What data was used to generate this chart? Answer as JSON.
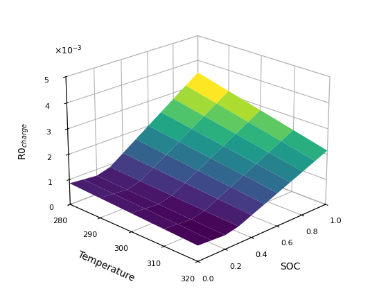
{
  "soc_values": [
    0.0,
    0.1,
    0.2,
    0.3,
    0.4,
    0.5,
    0.6,
    0.7,
    0.8,
    0.9,
    1.0
  ],
  "temp_values": [
    280,
    290,
    300,
    310,
    320
  ],
  "xlabel": "SOC",
  "ylabel": "Temperature",
  "zlabel": "R0$_{charge}$",
  "zlim": [
    0,
    0.005
  ],
  "soc_lim": [
    0,
    1
  ],
  "temp_lim": [
    280,
    320
  ],
  "elev": 22,
  "azim": -135,
  "xticks": [
    0,
    0.2,
    0.4,
    0.6,
    0.8,
    1.0
  ],
  "yticks": [
    280,
    290,
    300,
    310,
    320
  ],
  "zticks": [
    0.0,
    0.001,
    0.002,
    0.003,
    0.004,
    0.005
  ],
  "ztick_labels": [
    "0",
    "1",
    "2",
    "3",
    "4",
    "5"
  ],
  "z_exp_label": "×10⁻³",
  "pane_color": [
    1.0,
    1.0,
    1.0,
    1.0
  ],
  "grid_color": "lightgray"
}
